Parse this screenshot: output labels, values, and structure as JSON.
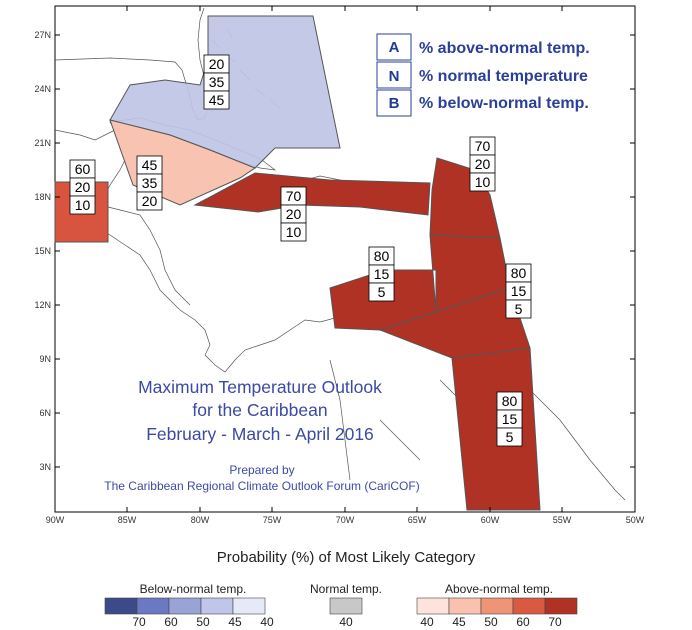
{
  "map": {
    "lat_ticks": [
      "27N",
      "24N",
      "21N",
      "18N",
      "15N",
      "12N",
      "9N",
      "6N",
      "3N"
    ],
    "lon_ticks": [
      "90W",
      "85W",
      "80W",
      "75W",
      "70W",
      "65W",
      "60W",
      "55W",
      "50W"
    ]
  },
  "legend_box": {
    "rows": [
      {
        "key": "A",
        "label": "% above-normal temp."
      },
      {
        "key": "N",
        "label": "% normal temperature"
      },
      {
        "key": "B",
        "label": "% below-normal temp."
      }
    ]
  },
  "title": {
    "line1": "Maximum Temperature Outlook",
    "line2": "for the Caribbean",
    "line3": "February - March - April 2016"
  },
  "credit": {
    "line1": "Prepared by",
    "line2": "The Caribbean Regional Climate Outlook Forum (CariCOF)"
  },
  "regions": [
    {
      "name": "bahamas-cuba",
      "category": "below",
      "level": 45,
      "values": [
        "20",
        "35",
        "45"
      ]
    },
    {
      "name": "central-america-north",
      "category": "above",
      "level": 60,
      "values": [
        "60",
        "20",
        "10"
      ]
    },
    {
      "name": "cuba-east-cayman",
      "category": "above",
      "level": 45,
      "values": [
        "45",
        "35",
        "20"
      ]
    },
    {
      "name": "greater-antilles",
      "category": "above",
      "level": 70,
      "values": [
        "70",
        "20",
        "10"
      ]
    },
    {
      "name": "leeward-islands",
      "category": "above",
      "level": 70,
      "values": [
        "70",
        "20",
        "10"
      ]
    },
    {
      "name": "abc-islands-venezuela",
      "category": "above",
      "level": 70,
      "values": [
        "80",
        "15",
        "5"
      ]
    },
    {
      "name": "windward-islands",
      "category": "above",
      "level": 70,
      "values": [
        "80",
        "15",
        "5"
      ]
    },
    {
      "name": "guianas",
      "category": "above",
      "level": 70,
      "values": [
        "80",
        "15",
        "5"
      ]
    }
  ],
  "scale": {
    "title": "Probability (%) of Most Likely Category",
    "below": {
      "label": "Below-normal temp.",
      "ticks": [
        "70",
        "60",
        "50",
        "45",
        "40"
      ],
      "colors": [
        "#3d4a8a",
        "#6b78c2",
        "#9aa3d6",
        "#c0c6ea",
        "#e6e9f8"
      ]
    },
    "normal": {
      "label": "Normal temp.",
      "ticks": [
        "40"
      ],
      "colors": [
        "#c8c8c8"
      ]
    },
    "above": {
      "label": "Above-normal temp.",
      "ticks": [
        "40",
        "45",
        "50",
        "60",
        "70"
      ],
      "colors": [
        "#fde3dc",
        "#f9c2b0",
        "#ee9477",
        "#d95a43",
        "#b03224"
      ]
    }
  }
}
